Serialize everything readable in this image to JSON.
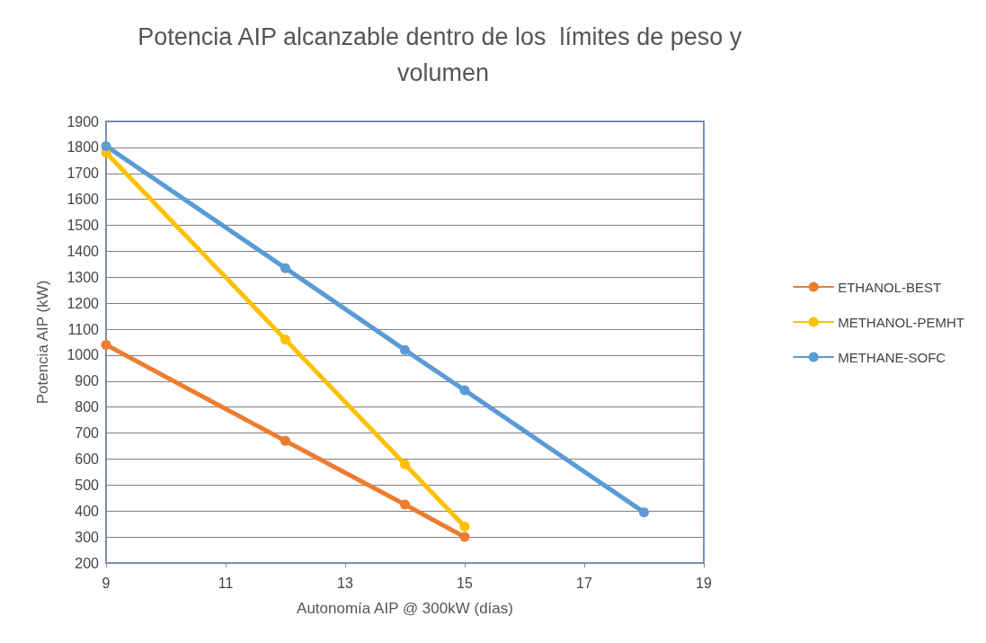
{
  "chart_data": {
    "type": "line",
    "title": "Potencia AIP alcanzable dentro de los  límites de peso y volumen",
    "xlabel": "Autonomía AIP @ 300kW (días)",
    "ylabel": "Potencia AIP (kW)",
    "xlim": [
      9,
      19
    ],
    "xticks": [
      9,
      11,
      13,
      15,
      17,
      19
    ],
    "ylim": [
      200,
      1900
    ],
    "yticks": [
      200,
      300,
      400,
      500,
      600,
      700,
      800,
      900,
      1000,
      1100,
      1200,
      1300,
      1400,
      1500,
      1600,
      1700,
      1800,
      1900
    ],
    "grid": "y",
    "legend": "right",
    "marker": "circle",
    "line_style": "solid",
    "series": [
      {
        "name": "ETHANOL-BEST",
        "color": "#ed7d31",
        "x": [
          9,
          12,
          14,
          15
        ],
        "values": [
          1040,
          670,
          425,
          300
        ]
      },
      {
        "name": "METHANOL-PEMHT",
        "color": "#ffc000",
        "x": [
          9,
          12,
          14,
          15
        ],
        "values": [
          1780,
          1060,
          580,
          340
        ]
      },
      {
        "name": "METHANE-SOFC",
        "color": "#5b9bd5",
        "x": [
          9,
          12,
          14,
          15,
          18
        ],
        "values": [
          1805,
          1335,
          1020,
          865,
          395
        ]
      }
    ]
  }
}
